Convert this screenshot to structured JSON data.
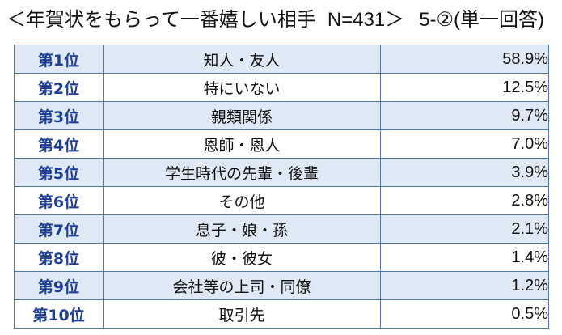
{
  "header": {
    "title": "＜年賀状をもらって一番嬉しい相手",
    "sample": "N=431＞",
    "question_code": "5-②(単一回答)"
  },
  "table": {
    "rows": [
      {
        "rank": "第1位",
        "item": "知人・友人",
        "percent": "58.9%"
      },
      {
        "rank": "第2位",
        "item": "特にいない",
        "percent": "12.5%"
      },
      {
        "rank": "第3位",
        "item": "親類関係",
        "percent": "9.7%"
      },
      {
        "rank": "第4位",
        "item": "恩師・恩人",
        "percent": "7.0%"
      },
      {
        "rank": "第5位",
        "item": "学生時代の先輩・後輩",
        "percent": "3.9%"
      },
      {
        "rank": "第6位",
        "item": "その他",
        "percent": "2.8%"
      },
      {
        "rank": "第7位",
        "item": "息子・娘・孫",
        "percent": "2.1%"
      },
      {
        "rank": "第8位",
        "item": "彼・彼女",
        "percent": "1.4%"
      },
      {
        "rank": "第9位",
        "item": "会社等の上司・同僚",
        "percent": "1.2%"
      },
      {
        "rank": "第10位",
        "item": "取引先",
        "percent": "0.5%"
      }
    ]
  }
}
